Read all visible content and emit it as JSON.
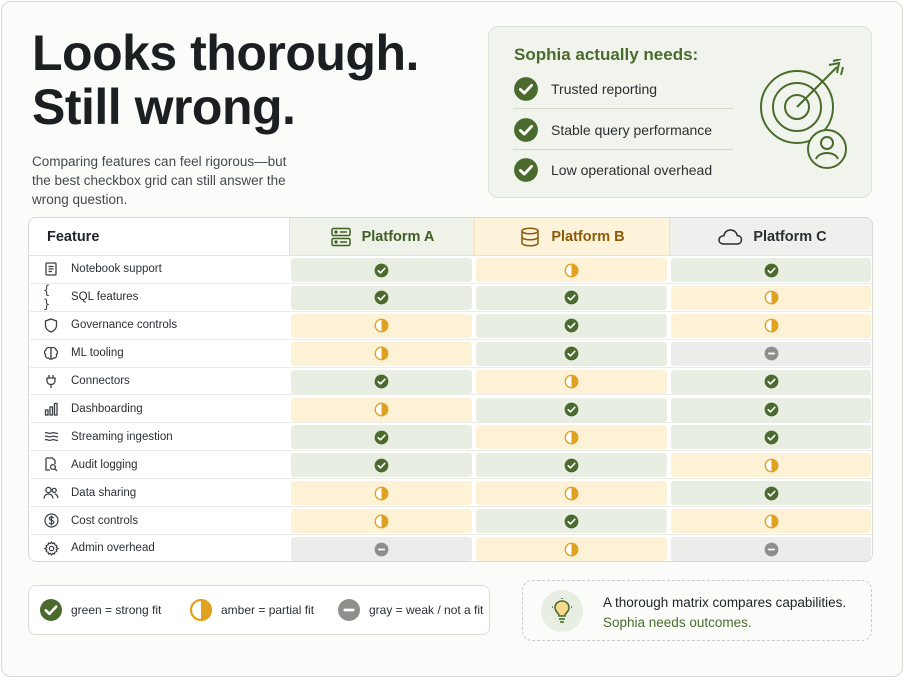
{
  "headline": {
    "line1": "Looks thorough.",
    "line2": "Still wrong."
  },
  "subhead": "Comparing features can feel rigorous—but the best checkbox grid can still answer the wrong question.",
  "needs": {
    "title": "Sophia actually needs:",
    "items": [
      "Trusted reporting",
      "Stable query performance",
      "Low operational overhead"
    ]
  },
  "table": {
    "feature_header": "Feature",
    "platforms": [
      {
        "name": "Platform A",
        "icon": "server-icon"
      },
      {
        "name": "Platform B",
        "icon": "database-icon"
      },
      {
        "name": "Platform C",
        "icon": "cloud-icon"
      }
    ],
    "rows": [
      {
        "feature": "Notebook support",
        "icon": "notebook-icon",
        "ratings": [
          "strong",
          "partial",
          "strong"
        ]
      },
      {
        "feature": "SQL features",
        "icon": "braces-icon",
        "ratings": [
          "strong",
          "strong",
          "partial"
        ]
      },
      {
        "feature": "Governance controls",
        "icon": "shield-icon",
        "ratings": [
          "partial",
          "strong",
          "partial"
        ]
      },
      {
        "feature": "ML tooling",
        "icon": "brain-icon",
        "ratings": [
          "partial",
          "strong",
          "weak"
        ]
      },
      {
        "feature": "Connectors",
        "icon": "plug-icon",
        "ratings": [
          "strong",
          "partial",
          "strong"
        ]
      },
      {
        "feature": "Dashboarding",
        "icon": "bar-chart-icon",
        "ratings": [
          "partial",
          "strong",
          "strong"
        ]
      },
      {
        "feature": "Streaming ingestion",
        "icon": "waves-icon",
        "ratings": [
          "strong",
          "partial",
          "strong"
        ]
      },
      {
        "feature": "Audit logging",
        "icon": "file-search-icon",
        "ratings": [
          "strong",
          "strong",
          "partial"
        ]
      },
      {
        "feature": "Data sharing",
        "icon": "users-icon",
        "ratings": [
          "partial",
          "partial",
          "strong"
        ]
      },
      {
        "feature": "Cost controls",
        "icon": "dollar-icon",
        "ratings": [
          "partial",
          "strong",
          "partial"
        ]
      },
      {
        "feature": "Admin overhead",
        "icon": "gear-icon",
        "ratings": [
          "weak",
          "partial",
          "weak"
        ]
      }
    ]
  },
  "legend": {
    "strong": "green = strong fit",
    "partial": "amber = partial fit",
    "weak": "gray = weak / not a fit"
  },
  "callout": {
    "line1": "A thorough matrix compares capabilities.",
    "line2": "Sophia needs outcomes."
  },
  "colors": {
    "strong": "#4b6b2e",
    "partial": "#e0a21e",
    "weak": "#8e8e8b"
  }
}
